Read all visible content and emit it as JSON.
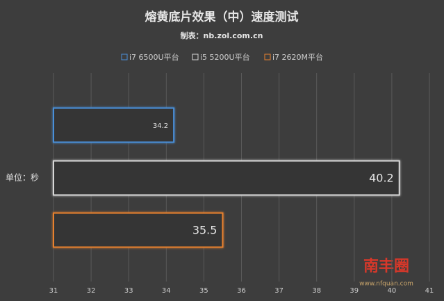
{
  "chart_data": {
    "type": "bar",
    "orientation": "horizontal",
    "title": "熔黄底片效果（中）速度测试",
    "subtitle": "制表：nb.zol.com.cn",
    "ylabel": "单位：秒",
    "categories": [
      null
    ],
    "series": [
      {
        "name": "i7 6500U平台",
        "color": "#4a90d9",
        "values": [
          34.2
        ]
      },
      {
        "name": "i5 5200U平台",
        "color": "#d8d8d8",
        "values": [
          40.2
        ]
      },
      {
        "name": "i7 2620M平台",
        "color": "#e8812f",
        "values": [
          35.5
        ]
      }
    ],
    "xlim": [
      31,
      41
    ],
    "xticks": [
      31,
      32,
      33,
      34,
      35,
      36,
      37,
      38,
      39,
      40,
      41
    ],
    "grid": true,
    "legend": "top"
  },
  "watermark": {
    "text": "南丰圈",
    "url": "www.nfquan.com"
  }
}
